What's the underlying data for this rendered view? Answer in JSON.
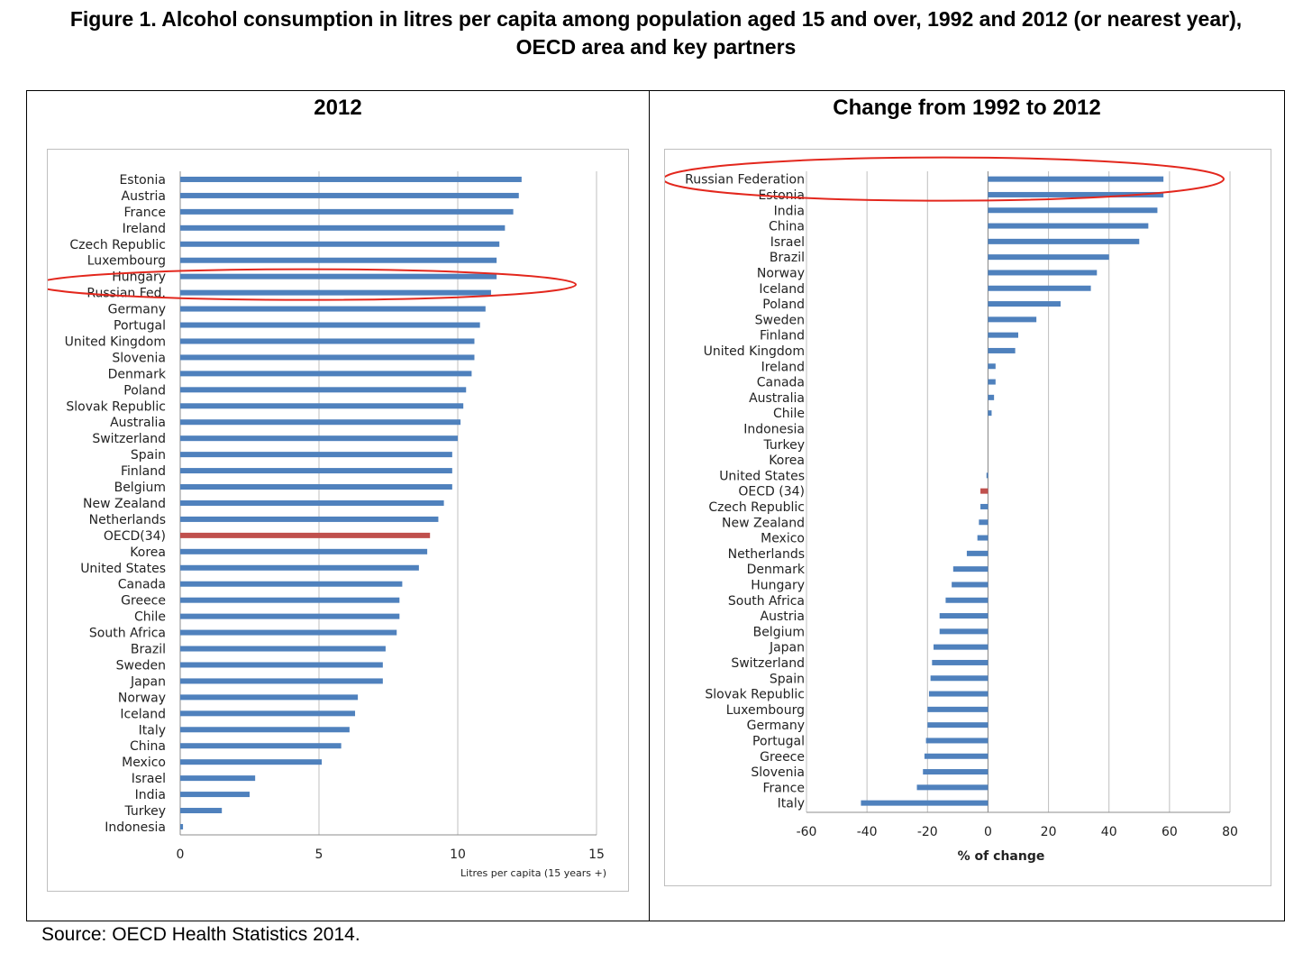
{
  "figure_title": "Figure 1. Alcohol consumption in litres per capita among population aged 15 and over, 1992 and 2012 (or nearest year), OECD area and key partners",
  "source": "Source: OECD Health Statistics 2014.",
  "colors": {
    "bar": "#4f81bd",
    "highlight": "#c0504d",
    "ellipse": "#e3271d",
    "grid": "#bfbfbf",
    "axis": "#8c8c8c"
  },
  "chart_data": [
    {
      "type": "bar",
      "orientation": "horizontal",
      "title": "2012",
      "xlabel": "Litres per capita (15 years +)",
      "xlim": [
        0,
        15
      ],
      "xticks": [
        0,
        5,
        10,
        15
      ],
      "grid": true,
      "highlight_category": "OECD(34)",
      "circled_categories": [
        "Hungary",
        "Russian Fed."
      ],
      "categories": [
        "Estonia",
        "Austria",
        "France",
        "Ireland",
        "Czech Republic",
        "Luxembourg",
        "Hungary",
        "Russian Fed.",
        "Germany",
        "Portugal",
        "United Kingdom",
        "Slovenia",
        "Denmark",
        "Poland",
        "Slovak Republic",
        "Australia",
        "Switzerland",
        "Spain",
        "Finland",
        "Belgium",
        "New Zealand",
        "Netherlands",
        "OECD(34)",
        "Korea",
        "United States",
        "Canada",
        "Greece",
        "Chile",
        "South Africa",
        "Brazil",
        "Sweden",
        "Japan",
        "Norway",
        "Iceland",
        "Italy",
        "China",
        "Mexico",
        "Israel",
        "India",
        "Turkey",
        "Indonesia"
      ],
      "values": [
        12.3,
        12.2,
        12.0,
        11.7,
        11.5,
        11.4,
        11.4,
        11.2,
        11.0,
        10.8,
        10.6,
        10.6,
        10.5,
        10.3,
        10.2,
        10.1,
        10.0,
        9.8,
        9.8,
        9.8,
        9.5,
        9.3,
        9.0,
        8.9,
        8.6,
        8.0,
        7.9,
        7.9,
        7.8,
        7.4,
        7.3,
        7.3,
        6.4,
        6.3,
        6.1,
        5.8,
        5.1,
        2.7,
        2.5,
        1.5,
        0.1
      ]
    },
    {
      "type": "bar",
      "orientation": "horizontal",
      "title": "Change from 1992 to 2012",
      "xlabel": "% of change",
      "xlim": [
        -60,
        80
      ],
      "xticks": [
        -60,
        -40,
        -20,
        0,
        20,
        40,
        60,
        80
      ],
      "grid": true,
      "highlight_category": "OECD (34)",
      "circled_categories": [
        "Russian Federation"
      ],
      "categories": [
        "Russian Federation",
        "Estonia",
        "India",
        "China",
        "Israel",
        "Brazil",
        "Norway",
        "Iceland",
        "Poland",
        "Sweden",
        "Finland",
        "United Kingdom",
        "Ireland",
        "Canada",
        "Australia",
        "Chile",
        "Indonesia",
        "Turkey",
        "Korea",
        "United States",
        "OECD (34)",
        "Czech Republic",
        "New Zealand",
        "Mexico",
        "Netherlands",
        "Denmark",
        "Hungary",
        "South Africa",
        "Austria",
        "Belgium",
        "Japan",
        "Switzerland",
        "Spain",
        "Slovak Republic",
        "Luxembourg",
        "Germany",
        "Portugal",
        "Greece",
        "Slovenia",
        "France",
        "Italy"
      ],
      "values": [
        58,
        58,
        56,
        53,
        50,
        40,
        36,
        34,
        24,
        16,
        10,
        9,
        2.5,
        2.5,
        2,
        1.2,
        0,
        0,
        0,
        -0.5,
        -2.5,
        -2.5,
        -3,
        -3.5,
        -7,
        -11.5,
        -12,
        -14,
        -16,
        -16,
        -18,
        -18.5,
        -19,
        -19.5,
        -20,
        -20,
        -20.5,
        -21,
        -21.5,
        -23.5,
        -42
      ]
    }
  ]
}
